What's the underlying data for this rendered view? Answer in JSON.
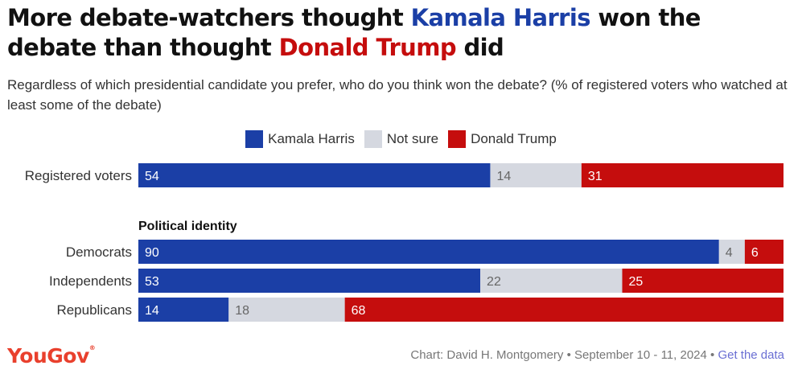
{
  "title": {
    "part1": "More debate-watchers thought ",
    "harris": "Kamala Harris",
    "part2": " won the debate than thought ",
    "trump": "Donald Trump",
    "part3": " did"
  },
  "subtitle": "Regardless of which presidential candidate you prefer, who do you think won the debate? (% of registered voters who watched at least some of the debate)",
  "footer": {
    "logo": "YouGov",
    "credit": "Chart: David H. Montgomery • September 10 - 11, 2024 • ",
    "link": "Get the data"
  },
  "chart_data": {
    "type": "bar",
    "orientation": "horizontal",
    "stacked": true,
    "categories": [
      "Registered voters",
      "Democrats",
      "Independents",
      "Republicans"
    ],
    "group_label": "Political identity",
    "series": [
      {
        "name": "Kamala Harris",
        "color": "#1b3fa6",
        "values": [
          54,
          90,
          53,
          14
        ]
      },
      {
        "name": "Not sure",
        "color": "#d5d8e0",
        "values": [
          14,
          4,
          22,
          18
        ]
      },
      {
        "name": "Donald Trump",
        "color": "#c50d0d",
        "values": [
          31,
          6,
          25,
          68
        ]
      }
    ],
    "legend_position": "top-center",
    "grid": false
  }
}
